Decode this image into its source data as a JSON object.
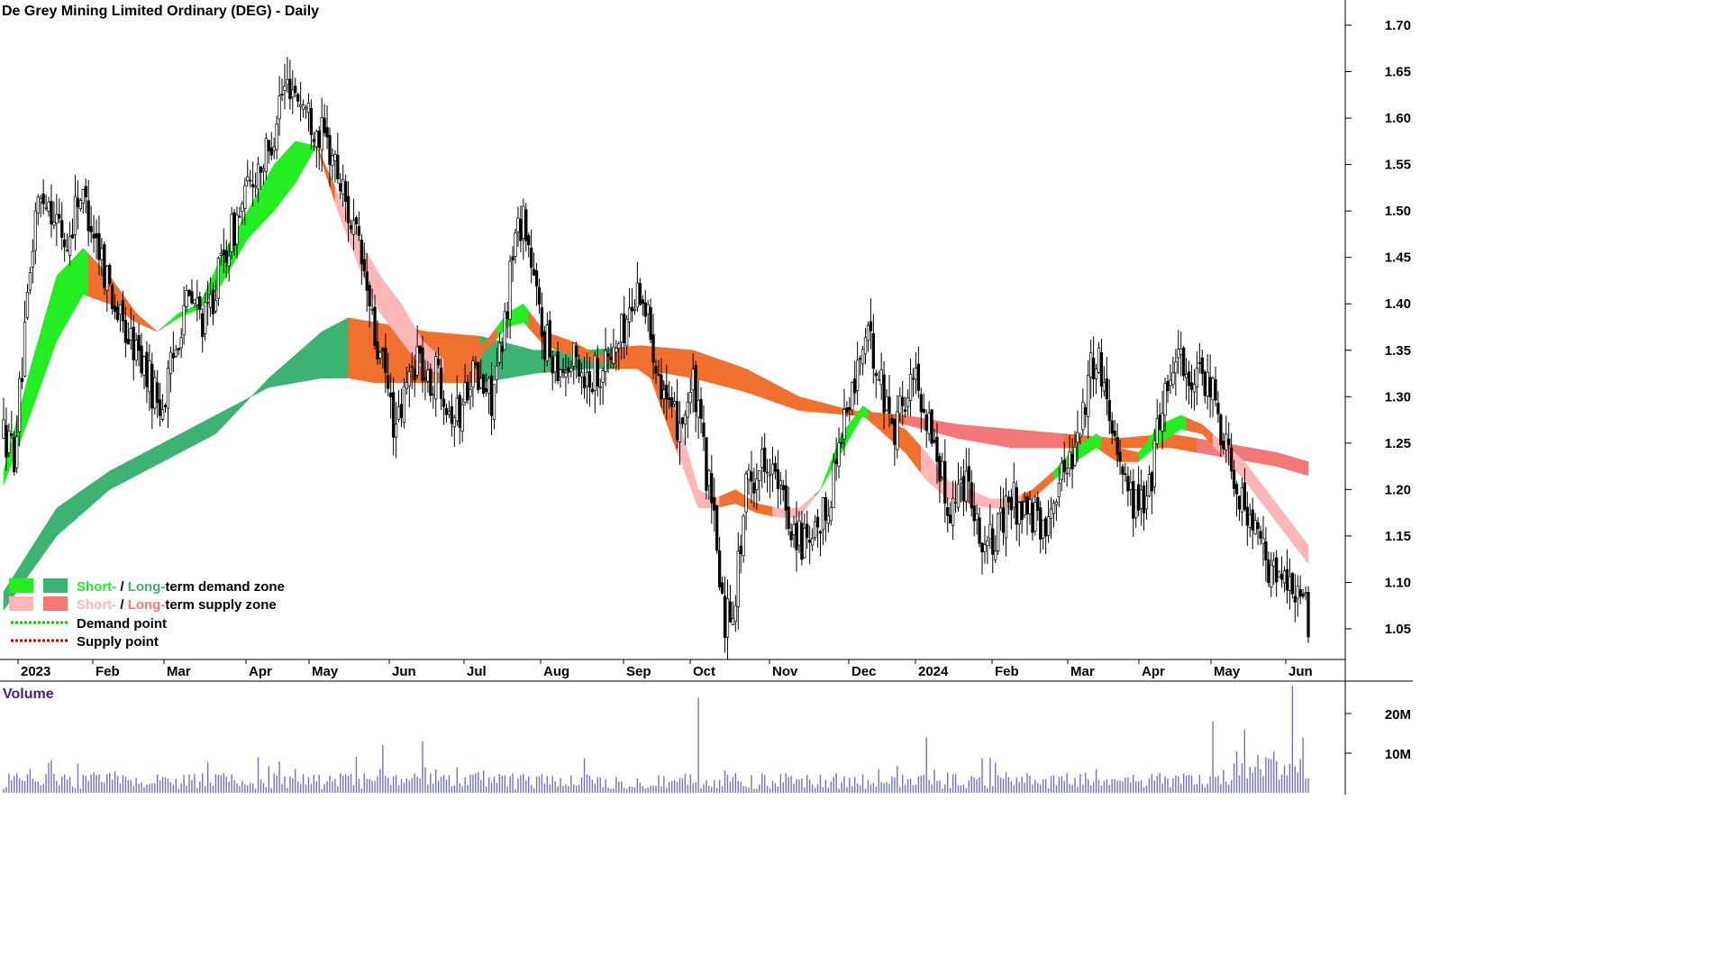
{
  "chart_data": {
    "type": "candlestick",
    "title": "De Grey Mining Limited Ordinary (DEG) - Daily",
    "price_axis": {
      "ticks": [
        "1.70",
        "1.65",
        "1.60",
        "1.55",
        "1.50",
        "1.45",
        "1.40",
        "1.35",
        "1.30",
        "1.25",
        "1.20",
        "1.15",
        "1.10",
        "1.05"
      ],
      "ylim": [
        1.02,
        1.72
      ]
    },
    "x_labels": [
      "2023",
      "Feb",
      "Mar",
      "Apr",
      "May",
      "Jun",
      "Jul",
      "Aug",
      "Sep",
      "Oct",
      "Nov",
      "Dec",
      "2024",
      "Feb",
      "Mar",
      "Apr",
      "May",
      "Jun"
    ],
    "volume_axis": {
      "label": "Volume",
      "ticks": [
        "20M",
        "10M"
      ]
    },
    "legend": [
      {
        "short": "Short-",
        "sep": " / ",
        "long": "Long-",
        "rest": "term demand zone"
      },
      {
        "short": "Short-",
        "sep": " / ",
        "long": "Long-",
        "rest": "term supply zone"
      },
      {
        "text": "Demand point"
      },
      {
        "text": "Supply point"
      }
    ],
    "colors": {
      "short_demand": "#22ee22",
      "long_demand": "#3cb371",
      "short_supply": "#ffb6b6",
      "long_supply": "#f47878",
      "band_orange": "#f07030",
      "demand_point": "#00cc00",
      "supply_point": "#cc0000",
      "volume_bar": "#7272c8"
    },
    "price_anchors": [
      [
        0,
        1.26
      ],
      [
        4,
        1.24
      ],
      [
        8,
        1.36
      ],
      [
        12,
        1.5
      ],
      [
        16,
        1.52
      ],
      [
        20,
        1.49
      ],
      [
        24,
        1.46
      ],
      [
        28,
        1.52
      ],
      [
        32,
        1.5
      ],
      [
        36,
        1.46
      ],
      [
        40,
        1.42
      ],
      [
        44,
        1.38
      ],
      [
        48,
        1.36
      ],
      [
        52,
        1.34
      ],
      [
        56,
        1.31
      ],
      [
        60,
        1.29
      ],
      [
        64,
        1.34
      ],
      [
        68,
        1.4
      ],
      [
        72,
        1.4
      ],
      [
        76,
        1.38
      ],
      [
        80,
        1.42
      ],
      [
        84,
        1.46
      ],
      [
        88,
        1.49
      ],
      [
        92,
        1.52
      ],
      [
        96,
        1.55
      ],
      [
        100,
        1.56
      ],
      [
        104,
        1.62
      ],
      [
        108,
        1.64
      ],
      [
        112,
        1.62
      ],
      [
        116,
        1.6
      ],
      [
        120,
        1.58
      ],
      [
        124,
        1.56
      ],
      [
        128,
        1.52
      ],
      [
        132,
        1.48
      ],
      [
        136,
        1.43
      ],
      [
        140,
        1.36
      ],
      [
        144,
        1.32
      ],
      [
        148,
        1.26
      ],
      [
        152,
        1.31
      ],
      [
        156,
        1.35
      ],
      [
        160,
        1.31
      ],
      [
        164,
        1.33
      ],
      [
        168,
        1.29
      ],
      [
        172,
        1.28
      ],
      [
        176,
        1.33
      ],
      [
        180,
        1.31
      ],
      [
        184,
        1.3
      ],
      [
        188,
        1.35
      ],
      [
        192,
        1.46
      ],
      [
        196,
        1.5
      ],
      [
        200,
        1.42
      ],
      [
        204,
        1.36
      ],
      [
        208,
        1.34
      ],
      [
        212,
        1.33
      ],
      [
        216,
        1.34
      ],
      [
        220,
        1.32
      ],
      [
        224,
        1.33
      ],
      [
        228,
        1.34
      ],
      [
        232,
        1.36
      ],
      [
        236,
        1.39
      ],
      [
        240,
        1.42
      ],
      [
        244,
        1.37
      ],
      [
        248,
        1.32
      ],
      [
        252,
        1.27
      ],
      [
        256,
        1.28
      ],
      [
        260,
        1.31
      ],
      [
        264,
        1.24
      ],
      [
        268,
        1.16
      ],
      [
        272,
        1.06
      ],
      [
        276,
        1.09
      ],
      [
        280,
        1.2
      ],
      [
        284,
        1.22
      ],
      [
        288,
        1.24
      ],
      [
        292,
        1.2
      ],
      [
        296,
        1.17
      ],
      [
        300,
        1.15
      ],
      [
        304,
        1.13
      ],
      [
        308,
        1.16
      ],
      [
        312,
        1.2
      ],
      [
        316,
        1.27
      ],
      [
        320,
        1.3
      ],
      [
        324,
        1.36
      ],
      [
        328,
        1.35
      ],
      [
        332,
        1.3
      ],
      [
        336,
        1.27
      ],
      [
        340,
        1.3
      ],
      [
        344,
        1.32
      ],
      [
        348,
        1.28
      ],
      [
        352,
        1.24
      ],
      [
        356,
        1.18
      ],
      [
        360,
        1.2
      ],
      [
        364,
        1.22
      ],
      [
        368,
        1.15
      ],
      [
        372,
        1.14
      ],
      [
        376,
        1.16
      ],
      [
        380,
        1.19
      ],
      [
        384,
        1.18
      ],
      [
        388,
        1.17
      ],
      [
        392,
        1.15
      ],
      [
        396,
        1.2
      ],
      [
        400,
        1.22
      ],
      [
        404,
        1.25
      ],
      [
        408,
        1.3
      ],
      [
        412,
        1.35
      ],
      [
        416,
        1.3
      ],
      [
        420,
        1.25
      ],
      [
        424,
        1.2
      ],
      [
        428,
        1.18
      ],
      [
        432,
        1.2
      ],
      [
        436,
        1.28
      ],
      [
        440,
        1.33
      ],
      [
        444,
        1.35
      ],
      [
        448,
        1.3
      ],
      [
        452,
        1.32
      ],
      [
        456,
        1.3
      ],
      [
        460,
        1.26
      ],
      [
        464,
        1.22
      ],
      [
        468,
        1.18
      ],
      [
        472,
        1.15
      ],
      [
        476,
        1.12
      ],
      [
        480,
        1.1
      ],
      [
        484,
        1.11
      ],
      [
        488,
        1.09
      ],
      [
        492,
        1.06
      ]
    ],
    "bands": [
      {
        "name": "long_top",
        "points": [
          [
            0,
            1.07
          ],
          [
            20,
            1.15
          ],
          [
            40,
            1.2
          ],
          [
            60,
            1.23
          ],
          [
            80,
            1.26
          ],
          [
            100,
            1.32
          ],
          [
            120,
            1.37
          ],
          [
            130,
            1.385
          ],
          [
            140,
            1.38
          ],
          [
            160,
            1.37
          ],
          [
            180,
            1.365
          ],
          [
            200,
            1.35
          ],
          [
            220,
            1.35
          ],
          [
            240,
            1.355
          ],
          [
            260,
            1.35
          ],
          [
            280,
            1.33
          ],
          [
            300,
            1.3
          ],
          [
            320,
            1.285
          ],
          [
            340,
            1.28
          ],
          [
            360,
            1.27
          ],
          [
            380,
            1.265
          ],
          [
            400,
            1.26
          ],
          [
            420,
            1.255
          ],
          [
            440,
            1.26
          ],
          [
            460,
            1.25
          ],
          [
            480,
            1.24
          ],
          [
            492,
            1.23
          ]
        ]
      },
      {
        "name": "long_bot",
        "points": [
          [
            0,
            1.09
          ],
          [
            20,
            1.18
          ],
          [
            40,
            1.22
          ],
          [
            60,
            1.25
          ],
          [
            80,
            1.28
          ],
          [
            100,
            1.31
          ],
          [
            120,
            1.32
          ],
          [
            130,
            1.32
          ],
          [
            140,
            1.315
          ],
          [
            160,
            1.315
          ],
          [
            180,
            1.315
          ],
          [
            200,
            1.325
          ],
          [
            220,
            1.33
          ],
          [
            240,
            1.33
          ],
          [
            260,
            1.32
          ],
          [
            280,
            1.305
          ],
          [
            300,
            1.285
          ],
          [
            320,
            1.28
          ],
          [
            340,
            1.27
          ],
          [
            360,
            1.255
          ],
          [
            380,
            1.245
          ],
          [
            400,
            1.245
          ],
          [
            420,
            1.245
          ],
          [
            440,
            1.245
          ],
          [
            460,
            1.235
          ],
          [
            480,
            1.225
          ],
          [
            492,
            1.215
          ]
        ]
      },
      {
        "name": "short_top",
        "points": [
          [
            0,
            1.22
          ],
          [
            10,
            1.33
          ],
          [
            20,
            1.43
          ],
          [
            30,
            1.46
          ],
          [
            40,
            1.43
          ],
          [
            50,
            1.39
          ],
          [
            58,
            1.37
          ],
          [
            66,
            1.39
          ],
          [
            74,
            1.4
          ],
          [
            82,
            1.45
          ],
          [
            92,
            1.5
          ],
          [
            102,
            1.55
          ],
          [
            110,
            1.575
          ],
          [
            118,
            1.57
          ],
          [
            126,
            1.52
          ],
          [
            134,
            1.47
          ],
          [
            142,
            1.43
          ],
          [
            150,
            1.4
          ],
          [
            158,
            1.36
          ],
          [
            166,
            1.34
          ],
          [
            174,
            1.34
          ],
          [
            182,
            1.36
          ],
          [
            190,
            1.39
          ],
          [
            196,
            1.4
          ],
          [
            204,
            1.37
          ],
          [
            214,
            1.36
          ],
          [
            224,
            1.345
          ],
          [
            234,
            1.35
          ],
          [
            244,
            1.35
          ],
          [
            254,
            1.28
          ],
          [
            262,
            1.2
          ],
          [
            268,
            1.19
          ],
          [
            276,
            1.2
          ],
          [
            284,
            1.185
          ],
          [
            292,
            1.18
          ],
          [
            300,
            1.18
          ],
          [
            308,
            1.2
          ],
          [
            316,
            1.26
          ],
          [
            324,
            1.29
          ],
          [
            332,
            1.275
          ],
          [
            340,
            1.265
          ],
          [
            348,
            1.24
          ],
          [
            356,
            1.21
          ],
          [
            364,
            1.2
          ],
          [
            372,
            1.19
          ],
          [
            380,
            1.19
          ],
          [
            388,
            1.2
          ],
          [
            396,
            1.22
          ],
          [
            404,
            1.245
          ],
          [
            412,
            1.26
          ],
          [
            420,
            1.245
          ],
          [
            428,
            1.24
          ],
          [
            436,
            1.27
          ],
          [
            444,
            1.28
          ],
          [
            452,
            1.27
          ],
          [
            460,
            1.25
          ],
          [
            468,
            1.23
          ],
          [
            476,
            1.2
          ],
          [
            484,
            1.17
          ],
          [
            492,
            1.14
          ]
        ]
      },
      {
        "name": "short_bot",
        "points": [
          [
            0,
            1.205
          ],
          [
            10,
            1.28
          ],
          [
            20,
            1.36
          ],
          [
            30,
            1.41
          ],
          [
            40,
            1.4
          ],
          [
            50,
            1.38
          ],
          [
            58,
            1.37
          ],
          [
            66,
            1.385
          ],
          [
            74,
            1.395
          ],
          [
            82,
            1.42
          ],
          [
            92,
            1.47
          ],
          [
            102,
            1.5
          ],
          [
            110,
            1.53
          ],
          [
            118,
            1.57
          ],
          [
            126,
            1.5
          ],
          [
            134,
            1.44
          ],
          [
            142,
            1.39
          ],
          [
            150,
            1.36
          ],
          [
            158,
            1.33
          ],
          [
            166,
            1.325
          ],
          [
            174,
            1.33
          ],
          [
            182,
            1.35
          ],
          [
            190,
            1.375
          ],
          [
            196,
            1.38
          ],
          [
            204,
            1.355
          ],
          [
            214,
            1.345
          ],
          [
            224,
            1.335
          ],
          [
            234,
            1.34
          ],
          [
            244,
            1.32
          ],
          [
            254,
            1.24
          ],
          [
            262,
            1.18
          ],
          [
            268,
            1.18
          ],
          [
            276,
            1.185
          ],
          [
            284,
            1.175
          ],
          [
            292,
            1.17
          ],
          [
            300,
            1.17
          ],
          [
            308,
            1.2
          ],
          [
            316,
            1.24
          ],
          [
            324,
            1.28
          ],
          [
            332,
            1.26
          ],
          [
            340,
            1.24
          ],
          [
            348,
            1.21
          ],
          [
            356,
            1.19
          ],
          [
            364,
            1.185
          ],
          [
            372,
            1.18
          ],
          [
            380,
            1.18
          ],
          [
            388,
            1.19
          ],
          [
            396,
            1.21
          ],
          [
            404,
            1.23
          ],
          [
            412,
            1.245
          ],
          [
            420,
            1.23
          ],
          [
            428,
            1.23
          ],
          [
            436,
            1.25
          ],
          [
            444,
            1.265
          ],
          [
            452,
            1.26
          ],
          [
            460,
            1.235
          ],
          [
            468,
            1.21
          ],
          [
            476,
            1.18
          ],
          [
            484,
            1.15
          ],
          [
            492,
            1.12
          ]
        ]
      }
    ],
    "volume_spikes": [
      [
        10,
        6
      ],
      [
        40,
        5
      ],
      [
        60,
        4
      ],
      [
        96,
        9
      ],
      [
        110,
        6
      ],
      [
        143,
        12
      ],
      [
        158,
        13
      ],
      [
        185,
        4
      ],
      [
        262,
        24
      ],
      [
        275,
        4
      ],
      [
        330,
        6
      ],
      [
        348,
        14
      ],
      [
        400,
        3
      ],
      [
        412,
        6
      ],
      [
        456,
        18
      ],
      [
        468,
        16
      ],
      [
        480,
        8
      ],
      [
        486,
        27
      ],
      [
        490,
        14
      ]
    ]
  }
}
